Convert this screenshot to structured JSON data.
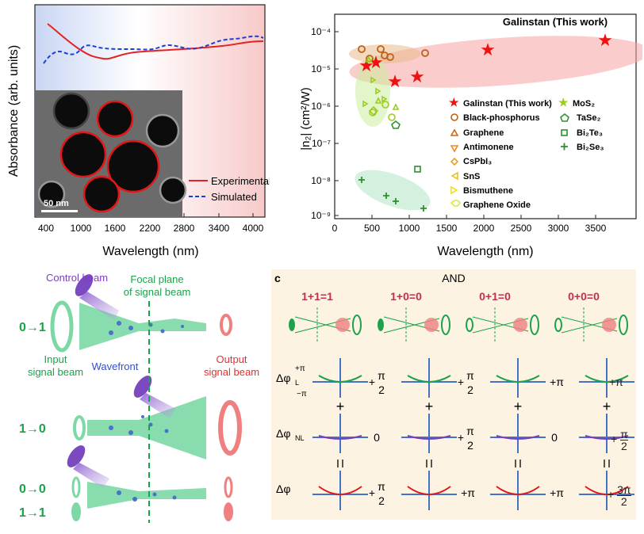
{
  "panel_a": {
    "ylabel": "Absorbance (arb. units)",
    "xlabel": "Wavelength (nm)",
    "ticks": [
      "400",
      "1000",
      "1600",
      "2200",
      "2800",
      "3400",
      "4000"
    ],
    "legend_exp": "Experimental",
    "legend_sim": "Simulated",
    "scale": "50 nm"
  },
  "panel_b": {
    "ylabel": "|n₂| (cm²/W)",
    "xlabel": "Wavelength (nm)",
    "title": "Galinstan (This work)",
    "xticks": [
      "0",
      "500",
      "1000",
      "1500",
      "2000",
      "2500",
      "3000",
      "3500"
    ],
    "yticks": [
      "10⁻⁴",
      "10⁻⁵",
      "10⁻⁶",
      "10⁻⁷",
      "10⁻⁸",
      "10⁻⁹"
    ],
    "legend": [
      "Galinstan (This work)",
      "Black-phosphorus",
      "Graphene",
      "Antimonene",
      "CsPbI₃",
      "SnS",
      "Bismuthene",
      "Graphene Oxide",
      "MoS₂",
      "TaSe₂",
      "Bi₂Te₃",
      "Bi₂Se₃"
    ]
  },
  "panel_left": {
    "control": "Control beam",
    "focal1": "Focal plane",
    "focal2": "of signal beam",
    "input1": "Input",
    "input2": "signal beam",
    "wavefront": "Wavefront",
    "output1": "Output",
    "output2": "signal beam",
    "r1": "0→1",
    "r2": "1→0",
    "r3": "0→0",
    "r4": "1→1"
  },
  "panel_c": {
    "letter": "c",
    "title": "AND",
    "eq": [
      "1+1=1",
      "1+0=0",
      "0+1=0",
      "0+0=0"
    ],
    "row_l": "Δφ",
    "sub_l": "L",
    "sub_nl": "NL",
    "plus_pi": "+π",
    "minus_pi": "−π",
    "pi": "π",
    "two": "2",
    "plus": "+",
    "zero": "0",
    "eqsign": "=",
    "three_pi": "3π"
  }
}
